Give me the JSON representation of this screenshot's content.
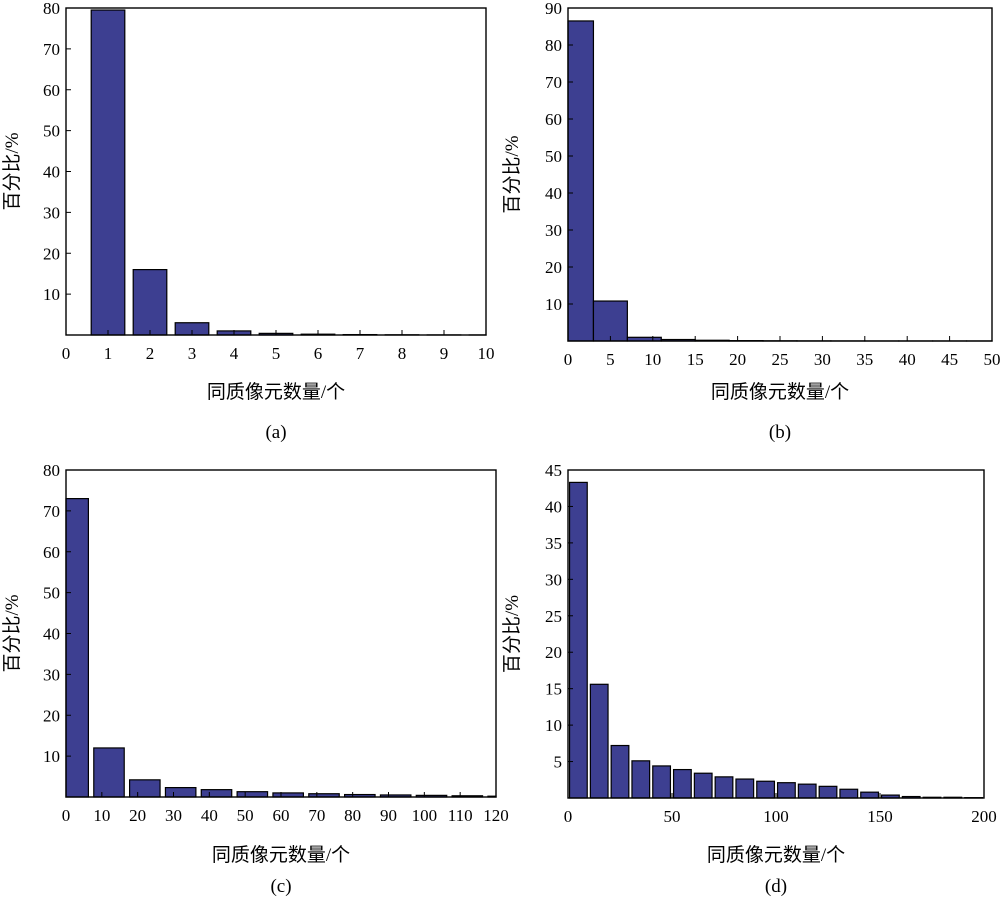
{
  "chart_data": [
    {
      "type": "bar",
      "caption": "(a)",
      "xlabel": "同质像元数量/个",
      "ylabel": "百分比/%",
      "xlim": [
        0,
        10
      ],
      "ylim": [
        0,
        80
      ],
      "xticks": [
        0,
        1,
        2,
        3,
        4,
        5,
        6,
        7,
        8,
        9,
        10
      ],
      "yticks": [
        10,
        20,
        30,
        40,
        50,
        60,
        70,
        80
      ],
      "x": [
        1,
        2,
        3,
        4,
        5,
        6,
        7,
        8,
        9,
        10
      ],
      "values": [
        79.5,
        16.0,
        3.0,
        1.0,
        0.4,
        0.2,
        0.1,
        0.05,
        0.02,
        0.01
      ],
      "bar_width": 0.8
    },
    {
      "type": "bar",
      "caption": "(b)",
      "xlabel": "同质像元数量/个",
      "ylabel": "百分比/%",
      "xlim": [
        0,
        50
      ],
      "ylim": [
        0,
        90
      ],
      "xticks": [
        0,
        5,
        10,
        15,
        20,
        25,
        30,
        35,
        40,
        45,
        50
      ],
      "yticks": [
        10,
        20,
        30,
        40,
        50,
        60,
        70,
        80,
        90
      ],
      "x": [
        1,
        5,
        9,
        13,
        17,
        21,
        25,
        29,
        33,
        37,
        41,
        45,
        49
      ],
      "values": [
        86.5,
        10.8,
        1.0,
        0.4,
        0.2,
        0.1,
        0.05,
        0.03,
        0.02,
        0.01,
        0.01,
        0.01,
        0.01
      ],
      "bar_width": 4
    },
    {
      "type": "bar",
      "caption": "(c)",
      "xlabel": "同质像元数量/个",
      "ylabel": "百分比/%",
      "xlim": [
        0,
        120
      ],
      "ylim": [
        0,
        80
      ],
      "xticks": [
        0,
        10,
        20,
        30,
        40,
        50,
        60,
        70,
        80,
        90,
        100,
        110,
        120
      ],
      "yticks": [
        10,
        20,
        30,
        40,
        50,
        60,
        70,
        80
      ],
      "x": [
        2,
        12,
        22,
        32,
        42,
        52,
        62,
        72,
        82,
        92,
        102,
        112,
        122
      ],
      "values": [
        73.0,
        12.0,
        4.2,
        2.3,
        1.8,
        1.3,
        1.0,
        0.8,
        0.6,
        0.5,
        0.4,
        0.3,
        0.2
      ],
      "bar_width": 8.5
    },
    {
      "type": "bar",
      "caption": "(d)",
      "xlabel": "同质像元数量/个",
      "ylabel": "百分比/%",
      "xlim": [
        0,
        200
      ],
      "ylim": [
        0,
        45
      ],
      "xticks": [
        0,
        50,
        100,
        150,
        200
      ],
      "yticks": [
        5,
        10,
        15,
        20,
        25,
        30,
        35,
        40,
        45
      ],
      "x": [
        5,
        15,
        25,
        35,
        45,
        55,
        65,
        75,
        85,
        95,
        105,
        115,
        125,
        135,
        145,
        155,
        165,
        175,
        185,
        195
      ],
      "values": [
        43.3,
        15.6,
        7.2,
        5.1,
        4.4,
        3.9,
        3.4,
        2.9,
        2.6,
        2.3,
        2.1,
        1.9,
        1.6,
        1.2,
        0.8,
        0.4,
        0.2,
        0.1,
        0.1,
        0.05
      ],
      "bar_width": 8.5
    }
  ]
}
